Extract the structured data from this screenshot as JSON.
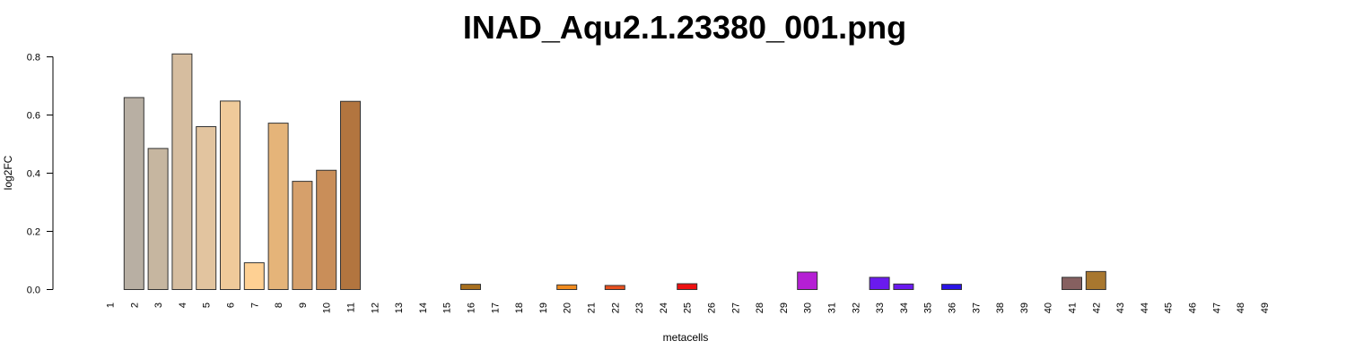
{
  "chart_data": {
    "type": "bar",
    "title": "INAD_Aqu2.1.23380_001.png",
    "xlabel": "metacells",
    "ylabel": "log2FC",
    "ylim": [
      0,
      0.8
    ],
    "yticks": [
      "0.0",
      "0.2",
      "0.4",
      "0.6",
      "0.8"
    ],
    "ytick_values": [
      0,
      0.2,
      0.4,
      0.6,
      0.8
    ],
    "grid": false,
    "legend": "none",
    "categories": [
      "1",
      "2",
      "3",
      "4",
      "5",
      "6",
      "7",
      "8",
      "9",
      "10",
      "11",
      "12",
      "13",
      "14",
      "15",
      "16",
      "17",
      "18",
      "19",
      "20",
      "21",
      "22",
      "23",
      "24",
      "25",
      "26",
      "27",
      "28",
      "29",
      "30",
      "31",
      "32",
      "33",
      "34",
      "35",
      "36",
      "37",
      "38",
      "39",
      "40",
      "41",
      "42",
      "43",
      "44",
      "45",
      "46",
      "47",
      "48",
      "49"
    ],
    "values": [
      0,
      0.66,
      0.485,
      0.81,
      0.56,
      0.648,
      0.092,
      0.572,
      0.372,
      0.41,
      0.647,
      0,
      0,
      0,
      0,
      0.018,
      0,
      0,
      0,
      0.016,
      0,
      0.014,
      0,
      0,
      0.02,
      0,
      0,
      0,
      0,
      0.06,
      0,
      0,
      0.042,
      0.019,
      0,
      0.018,
      0,
      0,
      0,
      0,
      0.042,
      0.062,
      0,
      0,
      0,
      0,
      0,
      0,
      0
    ],
    "colors": [
      "#d0d0d0",
      "#b8afa3",
      "#c6b6a0",
      "#d6bd9f",
      "#e2c49f",
      "#efca9a",
      "#fed093",
      "#e5b479",
      "#d6a06b",
      "#c98e59",
      "#b2753f",
      "#d0d0d0",
      "#d0d0d0",
      "#d0d0d0",
      "#d0d0d0",
      "#a86f1e",
      "#d0d0d0",
      "#d0d0d0",
      "#d0d0d0",
      "#f08b1e",
      "#d0d0d0",
      "#e8501e",
      "#d0d0d0",
      "#d0d0d0",
      "#ee1010",
      "#d0d0d0",
      "#d0d0d0",
      "#d0d0d0",
      "#d0d0d0",
      "#b51fd4",
      "#d0d0d0",
      "#d0d0d0",
      "#6a1aee",
      "#6a1aee",
      "#d0d0d0",
      "#2a14e6",
      "#d0d0d0",
      "#d0d0d0",
      "#d0d0d0",
      "#d0d0d0",
      "#866060",
      "#a8772f",
      "#d0d0d0",
      "#d0d0d0",
      "#d0d0d0",
      "#d0d0d0",
      "#d0d0d0",
      "#d0d0d0",
      "#d0d0d0"
    ]
  }
}
